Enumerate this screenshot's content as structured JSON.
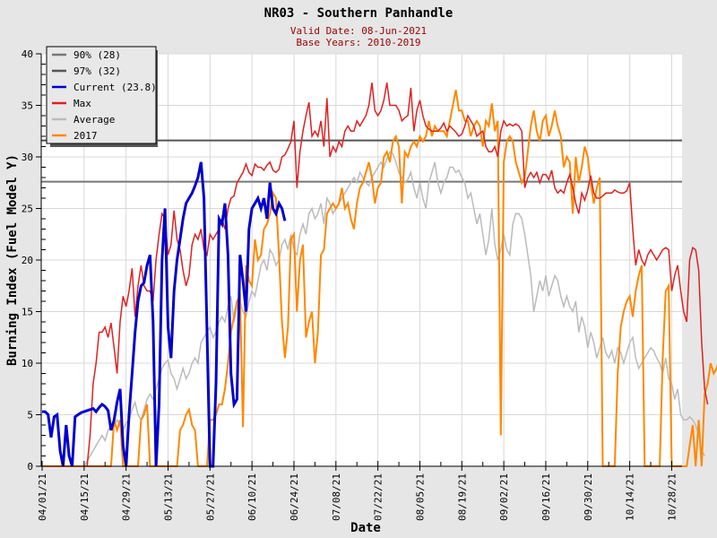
{
  "chart_data": {
    "type": "line",
    "title": "NR03 - Southern Panhandle",
    "subtitle_lines": [
      "Valid Date: 08-Jun-2021",
      "Base Years: 2010-2019"
    ],
    "xlabel": "Date",
    "ylabel": "Burning Index (Fuel Model Y)",
    "ylim": [
      0,
      40
    ],
    "yticks": [
      "0",
      "5",
      "10",
      "15",
      "20",
      "25",
      "30",
      "35",
      "40"
    ],
    "x_start": "04/01/21",
    "x_days": 214,
    "xticks": [
      "04/01/21",
      "04/15/21",
      "04/29/21",
      "05/13/21",
      "05/27/21",
      "06/10/21",
      "06/24/21",
      "07/08/21",
      "07/22/21",
      "08/05/21",
      "08/19/21",
      "09/02/21",
      "09/16/21",
      "09/30/21",
      "10/14/21",
      "10/28/21"
    ],
    "grid": true,
    "legend_position": "top-left",
    "thresholds": [
      {
        "name": "90% (28)",
        "value": 27.6,
        "color": "#777777"
      },
      {
        "name": "97% (32)",
        "value": 31.6,
        "color": "#555555"
      }
    ],
    "series": [
      {
        "name": "Current (23.8)",
        "color": "#0000cc",
        "width": 3,
        "start_day": 0,
        "values": [
          5.3,
          5.3,
          5.0,
          2.8,
          4.8,
          5.0,
          1.5,
          0,
          4.0,
          1.0,
          0,
          4.8,
          5.0,
          5.2,
          5.3,
          5.4,
          5.5,
          5.6,
          5.3,
          5.7,
          6.0,
          5.8,
          5.4,
          3.5,
          4.5,
          6.2,
          7.5,
          2.0,
          0,
          5.0,
          9.0,
          13.0,
          16.0,
          17.5,
          17.8,
          19.5,
          20.5,
          14.0,
          0,
          6.0,
          20.0,
          25.0,
          13.5,
          10.5,
          17.0,
          20.0,
          22.0,
          24.0,
          25.5,
          26.0,
          26.5,
          27.2,
          28.0,
          29.5,
          26.0,
          13.0,
          0,
          0,
          8.0,
          24.0,
          23.5,
          25.5,
          20.5,
          9.0,
          6.0,
          6.5,
          20.5,
          18.0,
          15.0,
          23.0,
          25.0,
          25.5,
          26.0,
          25.0,
          26.0,
          24.0,
          27.5,
          25.0,
          24.5,
          25.5,
          25.0,
          23.8
        ]
      },
      {
        "name": "Max",
        "color": "#dd2222",
        "width": 1.5,
        "start_day": 15,
        "values": [
          0,
          3,
          8,
          10,
          13,
          13,
          13.5,
          12.5,
          13.9,
          11.5,
          9.0,
          14.0,
          16.5,
          15.5,
          17.0,
          19.2,
          14.5,
          17.5,
          19.5,
          17.5,
          17.0,
          17.0,
          16.0,
          20.0,
          22.5,
          24.5,
          24.0,
          20.5,
          21.5,
          24.8,
          22.0,
          21.0,
          19.0,
          17.5,
          18.5,
          21.5,
          22.5,
          22.0,
          23.0,
          21.0,
          20.5,
          22.5,
          22.0,
          22.5,
          23.0,
          24.0,
          23.0,
          25.0,
          26.0,
          26.2,
          27.5,
          28.0,
          28.5,
          29.3,
          28.5,
          28.2,
          29.3,
          29.0,
          29.0,
          28.7,
          29.2,
          29.5,
          28.7,
          28.5,
          28.8,
          30.0,
          30.2,
          30.8,
          31.5,
          33.5,
          27.0,
          30.5,
          32.5,
          34.0,
          35.3,
          32.0,
          32.5,
          32.0,
          33.5,
          31.0,
          35.7,
          30.0,
          31.0,
          30.5,
          31.5,
          31.0,
          32.5,
          33.0,
          32.5,
          32.5,
          33.5,
          33.0,
          33.5,
          34.0,
          35.0,
          37.2,
          34.5,
          34.0,
          34.5,
          35.5,
          37.2,
          35.0,
          35.0,
          35.0,
          34.5,
          33.5,
          33.8,
          34.0,
          36.7,
          32.5,
          34.5,
          35.5,
          34.0,
          33.0,
          32.7,
          32.5,
          32.5,
          32.5,
          32.8,
          33.3,
          32.5,
          33.0,
          32.7,
          32.4,
          32.0,
          32.2,
          33.0,
          34.0,
          33.5,
          33.0,
          32.0,
          32.3,
          32.5,
          31.0,
          30.5,
          30.5,
          31.0,
          30.0,
          32.5,
          33.5,
          33.0,
          33.2,
          33.0,
          33.2,
          33.0,
          32.5,
          27.0,
          28.0,
          28.5,
          28.0,
          28.5,
          27.5,
          28.3,
          28.3,
          27.8,
          28.7,
          27.0,
          26.5,
          26.8,
          26.5,
          27.5,
          28.3,
          27.0,
          25.5,
          24.5,
          26.5,
          25.8,
          26.8,
          28.2,
          26.5,
          26.0,
          26.0,
          26.2,
          26.5,
          26.5,
          26.5,
          26.8,
          26.6,
          26.5,
          26.5,
          26.7,
          27.5,
          23.0,
          19.5,
          21.0,
          20.0,
          19.5,
          20.5,
          21.0,
          20.5,
          20.0,
          20.5,
          21.0,
          21.2,
          21.0,
          17.0,
          18.5,
          19.5,
          17.0,
          15.0,
          14.0,
          20.0,
          21.2,
          21.0,
          19.0,
          12.0,
          7.5,
          6.0
        ]
      },
      {
        "name": "Average",
        "color": "#bbbbbb",
        "width": 1.5,
        "start_day": 14,
        "values": [
          0,
          0.5,
          1,
          1.5,
          2,
          2.5,
          3,
          2.5,
          3.5,
          4,
          3.8,
          4.5,
          4.0,
          3.5,
          4.2,
          4.5,
          5.5,
          6.2,
          5.0,
          4.5,
          5.5,
          6.5,
          7.0,
          6.5,
          7.5,
          8.5,
          9.5,
          10.0,
          10.3,
          9.0,
          8.5,
          7.5,
          8.5,
          9.5,
          8.5,
          9.0,
          10.0,
          10.5,
          10.0,
          12.0,
          12.5,
          13.0,
          13.5,
          12.5,
          13.0,
          14.0,
          14.5,
          14.0,
          15.5,
          16.5,
          14.0,
          15.5,
          16.0,
          15.0,
          14.5,
          16.0,
          17.0,
          16.5,
          18.0,
          19.5,
          20.0,
          19.0,
          21.0,
          20.5,
          19.5,
          20.0,
          21.5,
          22.0,
          21.0,
          22.5,
          21.0,
          20.5,
          22.5,
          23.5,
          22.5,
          24.5,
          25.0,
          24.0,
          24.5,
          25.5,
          23.5,
          26.0,
          25.5,
          24.5,
          25.0,
          25.5,
          26.0,
          26.5,
          27.0,
          27.5,
          28.0,
          27.5,
          28.5,
          28.0,
          27.5,
          27.2,
          28.0,
          28.5,
          29.0,
          29.5,
          29.0,
          29.8,
          30.5,
          30.3,
          29.5,
          28.5,
          28.0,
          27.5,
          27.8,
          28.5,
          27.0,
          26.0,
          27.5,
          26.0,
          25.0,
          27.5,
          28.5,
          29.5,
          27.5,
          26.5,
          27.5,
          28.0,
          29.0,
          29.0,
          28.5,
          28.7,
          28.0,
          27.5,
          26.0,
          26.5,
          25.0,
          23.5,
          24.5,
          22.5,
          20.5,
          22.0,
          25.0,
          21.5,
          20.0,
          21.0,
          22.5,
          21.0,
          20.5,
          23.5,
          24.5,
          24.5,
          24.0,
          22.5,
          20.5,
          18.5,
          15.0,
          16.5,
          18.0,
          17.0,
          18.5,
          16.5,
          17.5,
          18.5,
          18.0,
          16.5,
          15.5,
          16.5,
          15.5,
          15.0,
          16.0,
          13.0,
          14.5,
          13.5,
          11.5,
          13.0,
          12.0,
          10.5,
          11.5,
          12.5,
          11.0,
          10.5,
          11.2,
          10.0,
          11.5,
          11.0,
          10.0,
          11.0,
          12.0,
          12.5,
          10.5,
          9.5,
          10.0,
          10.5,
          11.0,
          11.5,
          11.2,
          10.5,
          10.0,
          9.0,
          10.5,
          8.5,
          8.0,
          6.5,
          7.5,
          5.0,
          4.5,
          4.5,
          4.8,
          4.5,
          4.0,
          3.0,
          1.5,
          1.0
        ]
      },
      {
        "name": "2017",
        "color": "#ff8800",
        "width": 2,
        "start_day": 0,
        "values": [
          0,
          0,
          0,
          0,
          0,
          0,
          0,
          0,
          0,
          0,
          0,
          0,
          0,
          0,
          0,
          0,
          0,
          0,
          0,
          0,
          0,
          0,
          0,
          0,
          4.5,
          3.5,
          4.5,
          0,
          0,
          0,
          0,
          0,
          0,
          4.5,
          5.0,
          6.0,
          0,
          0,
          0,
          0,
          0,
          0,
          0,
          0,
          0,
          0,
          3.5,
          4.0,
          5.0,
          5.5,
          4.0,
          3.5,
          0,
          0,
          0,
          0,
          4.5,
          4.5,
          5.0,
          6.0,
          6.0,
          7.5,
          10.0,
          13.0,
          14.5,
          16.0,
          16.5,
          3.8,
          19.5,
          18.0,
          17.5,
          22.0,
          20.0,
          20.5,
          23.0,
          23.5,
          24.5,
          26.5,
          26.0,
          20.5,
          14.0,
          10.5,
          13.5,
          22.0,
          22.5,
          15.0,
          20.0,
          21.5,
          12.5,
          14.0,
          15.0,
          10.0,
          13.0,
          20.5,
          21.0,
          24.5,
          25.0,
          25.5,
          25.0,
          25.5,
          27.0,
          25.0,
          25.5,
          24.0,
          23.0,
          25.5,
          27.0,
          27.5,
          28.5,
          29.5,
          28.0,
          25.5,
          27.0,
          27.5,
          30.0,
          30.5,
          29.5,
          31.5,
          32.0,
          31.0,
          25.5,
          30.5,
          30.0,
          31.0,
          31.5,
          31.0,
          32.0,
          31.5,
          32.0,
          33.5,
          32.0,
          33.0,
          32.5,
          32.5,
          32.5,
          32.0,
          33.5,
          35.0,
          36.5,
          34.5,
          34.5,
          33.5,
          33.5,
          32.0,
          33.0,
          33.5,
          33.0,
          31.0,
          33.5,
          33.0,
          35.2,
          32.5,
          33.5,
          3.0,
          29.5,
          31.5,
          32.0,
          31.5,
          29.5,
          28.5,
          27.5,
          28.0,
          30.5,
          33.0,
          34.5,
          32.5,
          31.5,
          33.5,
          34.0,
          32.0,
          33.0,
          34.5,
          33.0,
          32.0,
          29.0,
          30.0,
          29.5,
          24.5,
          30.0,
          27.5,
          29.0,
          31.0,
          30.0,
          27.5,
          25.5,
          27.0,
          28.0,
          0,
          0,
          0,
          0,
          0,
          9.0,
          13.5,
          15.0,
          16.0,
          16.5,
          14.5,
          17.0,
          18.5,
          19.5,
          0,
          0,
          0,
          0,
          0,
          0,
          10.5,
          17.0,
          17.5,
          0,
          0,
          0,
          0,
          0,
          0,
          2.0,
          4.0,
          0,
          4.5,
          0,
          7.0,
          8.0,
          10.0,
          9.0,
          9.5,
          10.5,
          11.0,
          8.5,
          7.5,
          6.5
        ]
      }
    ]
  }
}
